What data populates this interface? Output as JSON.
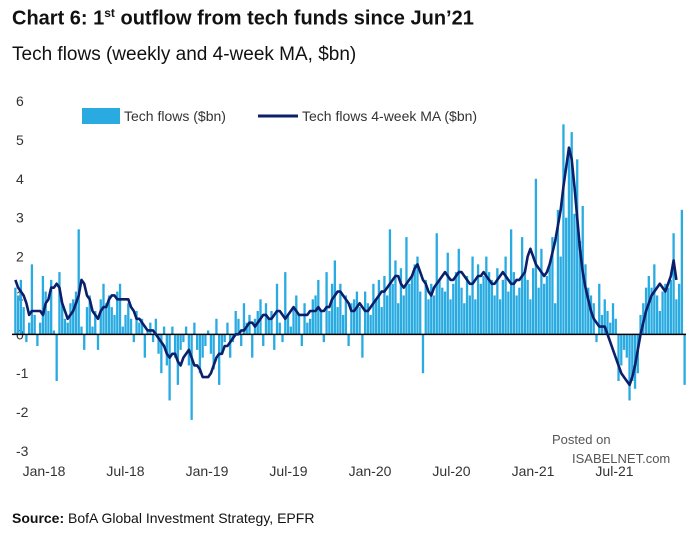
{
  "chart_data": {
    "type": "bar+line",
    "title_prefix": "Chart 6: 1",
    "title_sup": "st",
    "title_rest": " outflow from tech funds since Jun’21",
    "subtitle": "Tech flows (weekly and 4-week MA, $bn)",
    "y_ticks": [
      "6",
      "5",
      "4",
      "3",
      "2",
      "1",
      "0",
      "-1",
      "-2",
      "-3"
    ],
    "x_ticks": [
      "Jan-18",
      "Jul-18",
      "Jan-19",
      "Jul-19",
      "Jan-20",
      "Jul-20",
      "Jan-21",
      "Jul-21"
    ],
    "ylim": [
      -3,
      6
    ],
    "grid": false,
    "legend_position": "top",
    "series": [
      {
        "name": "Tech flows ($bn)",
        "kind": "bar",
        "color": "#29ABE2",
        "values": [
          1.2,
          1.0,
          1.4,
          0.7,
          -0.2,
          0.3,
          1.8,
          0.5,
          -0.3,
          0.3,
          1.5,
          1.1,
          0.6,
          1.4,
          0.1,
          -1.2,
          1.6,
          0.8,
          0.4,
          0.3,
          0.8,
          0.9,
          1.1,
          2.7,
          0.2,
          -0.4,
          0.7,
          1.0,
          0.2,
          0.6,
          -0.4,
          0.9,
          1.3,
          0.8,
          1.0,
          0.7,
          0.5,
          1.1,
          1.3,
          0.2,
          0.5,
          0.8,
          0.4,
          -0.2,
          0.6,
          0.3,
          0.4,
          -0.6,
          0.1,
          0.3,
          -0.2,
          0.4,
          -0.5,
          -1.0,
          0.2,
          -0.8,
          -1.7,
          0.2,
          -0.6,
          -1.3,
          -0.4,
          -0.2,
          0.2,
          -0.8,
          -2.2,
          0.3,
          -0.4,
          -1.0,
          -0.6,
          -0.3,
          0.1,
          -0.5,
          -0.9,
          0.4,
          -1.3,
          -0.5,
          -0.2,
          0.3,
          -0.6,
          -0.2,
          0.6,
          0.4,
          -0.3,
          0.8,
          0.3,
          0.5,
          -0.6,
          0.4,
          0.6,
          0.9,
          -0.3,
          0.8,
          0.4,
          0.6,
          -0.4,
          1.3,
          0.3,
          -0.2,
          1.6,
          0.5,
          0.2,
          0.7,
          1.0,
          0.5,
          -0.3,
          0.8,
          0.3,
          0.4,
          0.9,
          1.0,
          1.4,
          0.6,
          -0.2,
          1.6,
          0.6,
          1.3,
          1.9,
          0.7,
          1.3,
          0.5,
          1.0,
          -0.3,
          0.8,
          0.9,
          1.1,
          0.7,
          -0.6,
          1.1,
          0.8,
          0.5,
          1.3,
          0.9,
          1.4,
          0.7,
          1.5,
          1.0,
          2.7,
          1.3,
          1.9,
          0.8,
          1.7,
          1.0,
          2.5,
          1.3,
          1.5,
          1.8,
          2.0,
          1.1,
          -1.0,
          1.4,
          0.9,
          1.3,
          1.0,
          2.6,
          1.4,
          1.2,
          1.1,
          2.1,
          0.9,
          1.3,
          1.6,
          2.2,
          1.2,
          0.8,
          1.5,
          1.0,
          2.0,
          0.9,
          1.8,
          1.3,
          1.5,
          2.0,
          1.6,
          1.4,
          1.0,
          1.7,
          0.9,
          1.4,
          2.0,
          1.1,
          2.7,
          1.6,
          1.0,
          1.2,
          2.5,
          1.6,
          1.4,
          0.9,
          1.7,
          4.0,
          1.2,
          2.2,
          1.3,
          1.5,
          1.8,
          2.5,
          0.8,
          3.2,
          2.0,
          5.4,
          3.0,
          4.8,
          5.2,
          3.1,
          4.5,
          2.4,
          3.3,
          1.8,
          1.2,
          1.0,
          0.8,
          -0.2,
          1.3,
          0.5,
          0.9,
          0.6,
          0.3,
          0.8,
          0.4,
          -1.2,
          -0.8,
          -0.4,
          -0.6,
          -1.7,
          -1.2,
          -1.4,
          -1.0,
          0.5,
          0.8,
          1.2,
          1.5,
          1.2,
          1.8,
          1.0,
          0.6,
          1.1,
          1.3,
          1.2,
          1.4,
          2.6,
          0.9,
          1.3,
          3.2,
          -1.3
        ]
      },
      {
        "name": "Tech flows 4-week MA ($bn)",
        "kind": "line",
        "color": "#0B1F6B",
        "values": [
          1.4,
          1.2,
          1.1,
          1.0,
          0.8,
          0.5,
          0.6,
          0.6,
          0.6,
          0.6,
          0.5,
          0.8,
          0.9,
          1.2,
          1.2,
          1.3,
          1.2,
          0.8,
          0.6,
          0.4,
          0.5,
          0.6,
          0.8,
          1.0,
          1.4,
          1.3,
          1.0,
          0.9,
          0.6,
          0.5,
          0.4,
          0.6,
          0.7,
          0.7,
          0.9,
          1.0,
          1.0,
          0.9,
          0.9,
          0.9,
          0.9,
          0.9,
          0.7,
          0.6,
          0.4,
          0.4,
          0.3,
          0.2,
          0.1,
          0.1,
          0.1,
          0.0,
          -0.1,
          -0.2,
          -0.3,
          -0.5,
          -0.6,
          -0.5,
          -0.5,
          -0.7,
          -0.8,
          -0.6,
          -0.5,
          -0.4,
          -0.6,
          -0.8,
          -0.8,
          -0.9,
          -1.1,
          -1.1,
          -1.1,
          -1.0,
          -0.8,
          -0.6,
          -0.5,
          -0.5,
          -0.3,
          -0.3,
          -0.2,
          -0.1,
          0.0,
          0.0,
          0.1,
          0.1,
          0.2,
          0.3,
          0.3,
          0.2,
          0.3,
          0.4,
          0.5,
          0.5,
          0.4,
          0.4,
          0.5,
          0.6,
          0.6,
          0.5,
          0.4,
          0.5,
          0.6,
          0.7,
          0.6,
          0.5,
          0.5,
          0.5,
          0.5,
          0.6,
          0.6,
          0.6,
          0.7,
          0.6,
          0.6,
          0.7,
          0.7,
          0.9,
          1.0,
          1.1,
          1.1,
          1.0,
          0.9,
          0.8,
          0.6,
          0.6,
          0.7,
          0.8,
          0.7,
          0.6,
          0.6,
          0.7,
          0.8,
          0.9,
          1.0,
          1.1,
          1.1,
          1.2,
          1.3,
          1.4,
          1.5,
          1.5,
          1.3,
          1.2,
          1.3,
          1.4,
          1.5,
          1.7,
          1.8,
          1.6,
          1.4,
          1.3,
          1.1,
          1.0,
          1.2,
          1.3,
          1.4,
          1.5,
          1.6,
          1.5,
          1.4,
          1.4,
          1.5,
          1.6,
          1.6,
          1.5,
          1.4,
          1.3,
          1.3,
          1.4,
          1.5,
          1.5,
          1.6,
          1.5,
          1.4,
          1.3,
          1.3,
          1.4,
          1.5,
          1.6,
          1.5,
          1.4,
          1.3,
          1.3,
          1.4,
          1.4,
          1.5,
          1.6,
          2.0,
          2.2,
          2.0,
          1.8,
          1.7,
          1.6,
          1.5,
          1.6,
          1.8,
          2.1,
          2.4,
          2.8,
          3.2,
          3.8,
          4.3,
          4.8,
          4.5,
          3.8,
          3.0,
          2.2,
          1.6,
          1.2,
          0.9,
          0.6,
          0.4,
          0.3,
          0.2,
          0.2,
          0.2,
          0.0,
          -0.2,
          -0.4,
          -0.6,
          -0.8,
          -1.0,
          -1.1,
          -1.2,
          -1.3,
          -1.1,
          -0.8,
          -0.4,
          0.0,
          0.3,
          0.6,
          0.8,
          1.0,
          1.1,
          1.2,
          1.3,
          1.2,
          1.1,
          1.3,
          1.5,
          1.9,
          1.4
        ]
      }
    ]
  },
  "posted_line1": "Posted on",
  "watermark": "ISABELNET.com",
  "source_label": "Source:",
  "source_text": "BofA Global Investment Strategy, EPFR"
}
